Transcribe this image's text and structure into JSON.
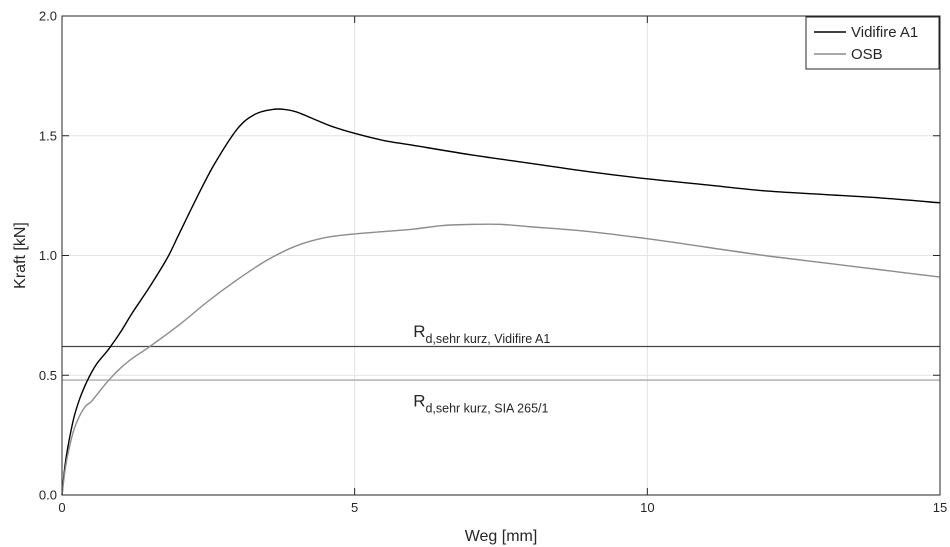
{
  "chart_data": {
    "type": "line",
    "xlabel": "Weg [mm]",
    "ylabel": "Kraft [kN]",
    "xlim": [
      0,
      15
    ],
    "ylim": [
      0,
      2.0
    ],
    "x_ticks": [
      0,
      5,
      10,
      15
    ],
    "x_tick_labels": [
      "0",
      "5",
      "10",
      "15"
    ],
    "y_ticks": [
      0,
      0.5,
      1.0,
      1.5,
      2.0
    ],
    "y_tick_labels": [
      "0.0",
      "0.5",
      "1.0",
      "1.5",
      "2.0"
    ],
    "grid": true,
    "legend_position": "top-right",
    "series": [
      {
        "name": "Vidifire A1",
        "color": "#000000",
        "x": [
          0,
          0.05,
          0.1,
          0.2,
          0.3,
          0.4,
          0.5,
          0.6,
          0.7,
          0.8,
          1.0,
          1.2,
          1.5,
          1.8,
          2.0,
          2.3,
          2.6,
          3.0,
          3.3,
          3.6,
          3.8,
          4.0,
          4.3,
          4.6,
          5.0,
          5.5,
          6,
          7,
          8,
          9,
          10,
          11,
          12,
          13,
          14,
          15
        ],
        "y": [
          0,
          0.12,
          0.2,
          0.32,
          0.4,
          0.46,
          0.51,
          0.55,
          0.58,
          0.61,
          0.68,
          0.76,
          0.87,
          0.99,
          1.09,
          1.24,
          1.38,
          1.53,
          1.59,
          1.61,
          1.61,
          1.6,
          1.57,
          1.54,
          1.51,
          1.48,
          1.46,
          1.42,
          1.385,
          1.35,
          1.32,
          1.295,
          1.27,
          1.255,
          1.24,
          1.22
        ]
      },
      {
        "name": "OSB",
        "color": "#8c8c8c",
        "x": [
          0,
          0.05,
          0.1,
          0.2,
          0.3,
          0.4,
          0.5,
          0.6,
          0.8,
          1.0,
          1.2,
          1.5,
          2.0,
          2.5,
          3.0,
          3.5,
          4.0,
          4.5,
          5.0,
          5.5,
          6,
          6.5,
          7,
          7.5,
          8,
          9,
          10,
          11,
          12,
          13,
          14,
          15
        ],
        "y": [
          0,
          0.1,
          0.17,
          0.27,
          0.33,
          0.37,
          0.39,
          0.42,
          0.48,
          0.53,
          0.57,
          0.62,
          0.71,
          0.81,
          0.9,
          0.98,
          1.04,
          1.075,
          1.09,
          1.1,
          1.11,
          1.125,
          1.13,
          1.13,
          1.12,
          1.1,
          1.07,
          1.035,
          1.0,
          0.97,
          0.94,
          0.91
        ]
      }
    ],
    "reference_lines": [
      {
        "y": 0.62,
        "color": "#444444",
        "label_main": "R",
        "label_sub": "d,sehr kurz, Vidifire A1",
        "label_x": 6.0,
        "label_y": 0.66
      },
      {
        "y": 0.48,
        "color": "#9a9a9a",
        "label_main": "R",
        "label_sub": "d,sehr kurz, SIA 265/1",
        "label_x": 6.0,
        "label_y": 0.37
      }
    ]
  }
}
